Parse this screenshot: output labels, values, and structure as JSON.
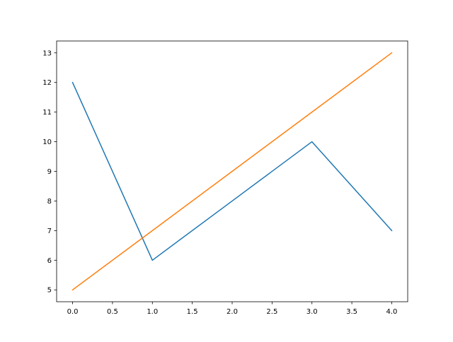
{
  "chart_data": {
    "type": "line",
    "title": "",
    "xlabel": "",
    "ylabel": "",
    "xlim": [
      -0.2,
      4.2
    ],
    "ylim": [
      4.6,
      13.4
    ],
    "grid": false,
    "x": [
      0,
      1,
      2,
      3,
      4
    ],
    "xticks": [
      "0.0",
      "0.5",
      "1.0",
      "1.5",
      "2.0",
      "2.5",
      "3.0",
      "3.5",
      "4.0"
    ],
    "yticks": [
      "5",
      "6",
      "7",
      "8",
      "9",
      "10",
      "11",
      "12",
      "13"
    ],
    "series": [
      {
        "values": [
          12,
          6,
          8,
          10,
          7
        ],
        "color": "#1f77b4"
      },
      {
        "values": [
          5,
          7,
          9,
          11,
          13
        ],
        "color": "#ff7f0e"
      }
    ]
  }
}
